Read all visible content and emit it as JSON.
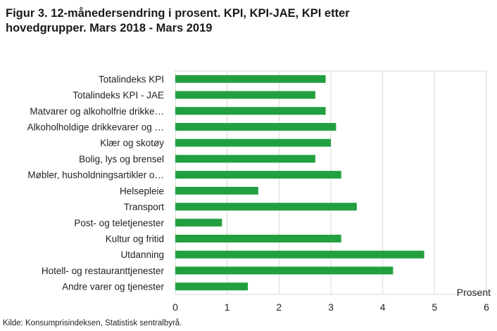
{
  "title_line1": "Figur 3. 12-månedersendring i prosent. KPI, KPI-JAE, KPI etter",
  "title_line2": "hovedgrupper. Mars 2018 - Mars 2019",
  "source": "Kilde: Konsumprisindeksen, Statistisk sentralbyrå.",
  "colors": {
    "bar": "#22a040",
    "grid": "#d9d9d9"
  },
  "chart_data": {
    "type": "bar",
    "orientation": "horizontal",
    "title": "Figur 3. 12-månedersendring i prosent. KPI, KPI-JAE, KPI etter hovedgrupper. Mars 2018 - Mars 2019",
    "xlabel": "Prosent",
    "ylabel": "",
    "xlim": [
      0,
      6
    ],
    "xticks": [
      0,
      1,
      2,
      3,
      4,
      5,
      6
    ],
    "grid": true,
    "legend": "none",
    "categories": [
      "Totalindeks KPI",
      "Totalindeks KPI - JAE",
      "Matvarer og alkoholfrie drikke…",
      "Alkoholholdige drikkevarer og …",
      "Klær og skotøy",
      "Bolig, lys og brensel",
      "Møbler, husholdningsartikler o…",
      "Helsepleie",
      "Transport",
      "Post- og teletjenester",
      "Kultur og fritid",
      "Utdanning",
      "Hotell- og restauranttjenester",
      "Andre varer og tjenester"
    ],
    "values": [
      2.9,
      2.7,
      2.9,
      3.1,
      3.0,
      2.7,
      3.2,
      1.6,
      3.5,
      0.9,
      3.2,
      4.8,
      4.2,
      1.4
    ]
  }
}
